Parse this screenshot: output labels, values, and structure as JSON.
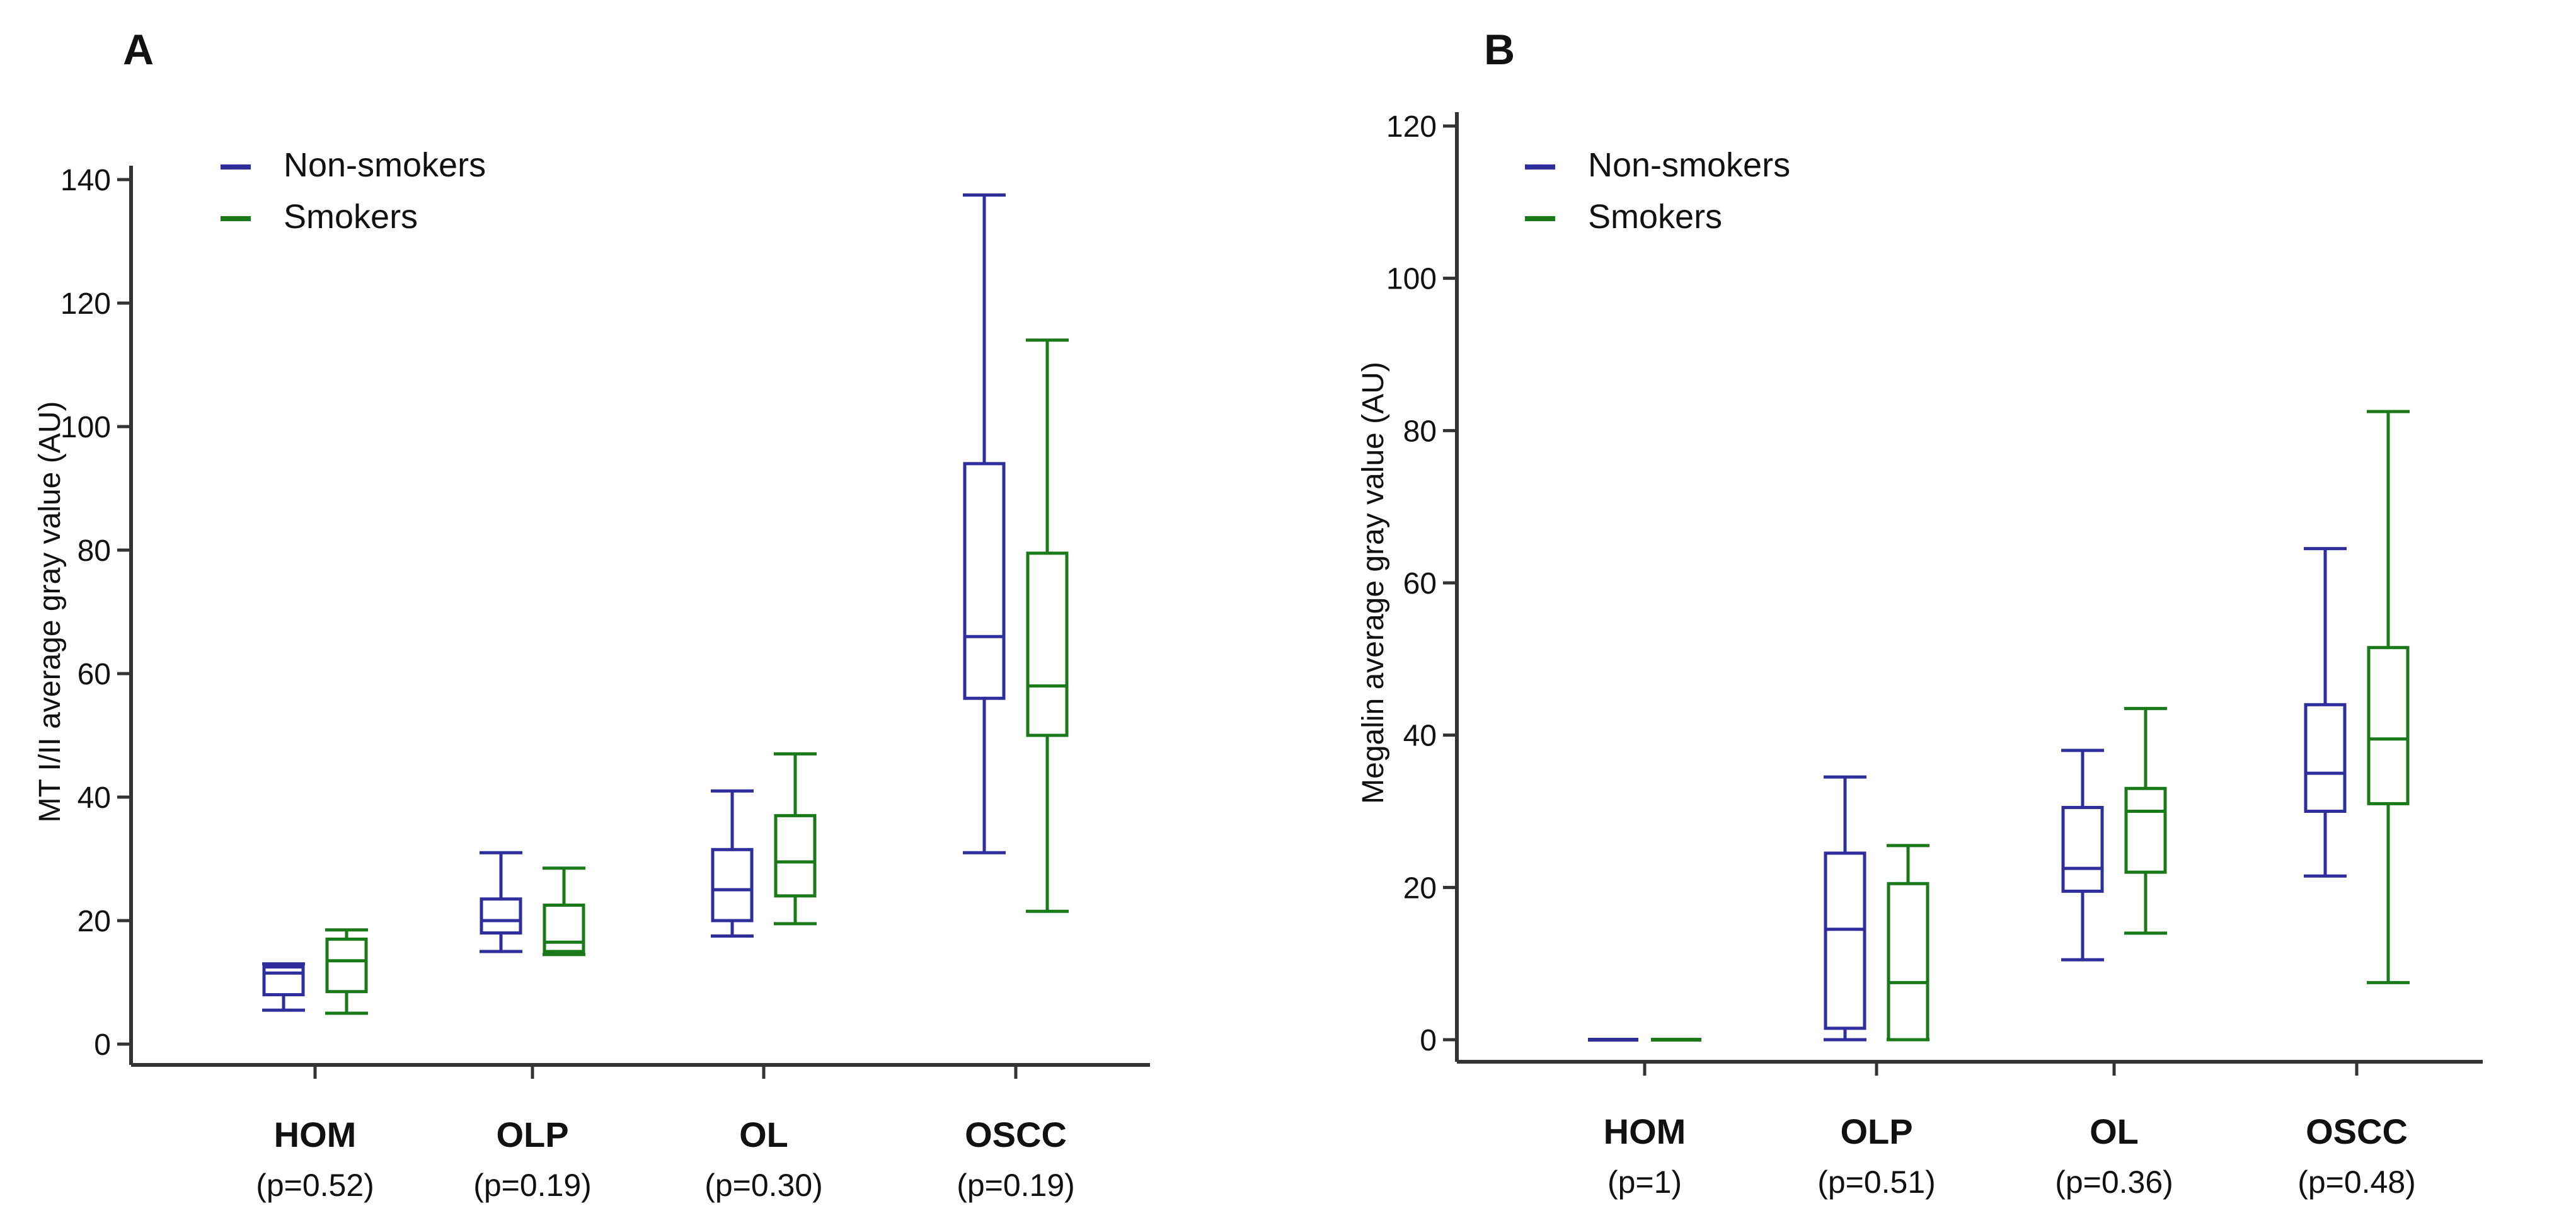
{
  "figure": {
    "panels_count": 2
  },
  "colors": {
    "non_smokers": "#2e2e9c",
    "smokers": "#1a7a1a",
    "axis": "#333333",
    "text": "#111111"
  },
  "chart_data": [
    {
      "type": "box",
      "panel_label": "A",
      "title": "",
      "xlabel": "",
      "ylabel": "MT I/II  average gray value (AU)",
      "ylim": [
        0,
        140
      ],
      "yticks": [
        0,
        20,
        40,
        60,
        80,
        100,
        120,
        140
      ],
      "legend": {
        "position": "top-left",
        "entries": [
          "Non-smokers",
          "Smokers"
        ]
      },
      "categories": [
        "HOM",
        "OLP",
        "OL",
        "OSCC"
      ],
      "pvalues": [
        "(p=0.52)",
        "(p=0.19)",
        "(p=0.30)",
        "(p=0.19)"
      ],
      "series": [
        {
          "name": "Non-smokers",
          "boxes": [
            {
              "min": 5.5,
              "q1": 8,
              "median": 11.5,
              "q3": 12.5,
              "max": 13
            },
            {
              "min": 15,
              "q1": 18,
              "median": 20,
              "q3": 23.5,
              "max": 31
            },
            {
              "min": 17.5,
              "q1": 20,
              "median": 25,
              "q3": 31.5,
              "max": 41
            },
            {
              "min": 31,
              "q1": 56,
              "median": 66,
              "q3": 94,
              "max": 137.5
            }
          ]
        },
        {
          "name": "Smokers",
          "boxes": [
            {
              "min": 5,
              "q1": 8.5,
              "median": 13.5,
              "q3": 17,
              "max": 18.5
            },
            {
              "min": 14.5,
              "q1": 15,
              "median": 16.5,
              "q3": 22.5,
              "max": 28.5
            },
            {
              "min": 19.5,
              "q1": 24,
              "median": 29.5,
              "q3": 37,
              "max": 47
            },
            {
              "min": 21.5,
              "q1": 50,
              "median": 58,
              "q3": 79.5,
              "max": 114
            }
          ]
        }
      ]
    },
    {
      "type": "box",
      "panel_label": "B",
      "title": "",
      "xlabel": "",
      "ylabel": "Megalin  average gray value (AU)",
      "ylim": [
        0,
        120
      ],
      "yticks": [
        0,
        20,
        40,
        60,
        80,
        100,
        120
      ],
      "legend": {
        "position": "top-left",
        "entries": [
          "Non-smokers",
          "Smokers"
        ]
      },
      "categories": [
        "HOM",
        "OLP",
        "OL",
        "OSCC"
      ],
      "pvalues": [
        "(p=1)",
        "(p=0.51)",
        "(p=0.36)",
        "(p=0.48)"
      ],
      "series": [
        {
          "name": "Non-smokers",
          "boxes": [
            {
              "min": 0,
              "q1": 0,
              "median": 0,
              "q3": 0,
              "max": 0
            },
            {
              "min": 0,
              "q1": 1.5,
              "median": 14.5,
              "q3": 24.5,
              "max": 34.5
            },
            {
              "min": 10.5,
              "q1": 19.5,
              "median": 22.5,
              "q3": 30.5,
              "max": 38
            },
            {
              "min": 21.5,
              "q1": 30,
              "median": 35,
              "q3": 44,
              "max": 64.5
            }
          ]
        },
        {
          "name": "Smokers",
          "boxes": [
            {
              "min": 0,
              "q1": 0,
              "median": 0,
              "q3": 0,
              "max": 0
            },
            {
              "min": 0,
              "q1": 0,
              "median": 7.5,
              "q3": 20.5,
              "max": 25.5
            },
            {
              "min": 14,
              "q1": 22,
              "median": 30,
              "q3": 33,
              "max": 43.5
            },
            {
              "min": 7.5,
              "q1": 31,
              "median": 39.5,
              "q3": 51.5,
              "max": 82.5
            }
          ]
        }
      ]
    }
  ]
}
